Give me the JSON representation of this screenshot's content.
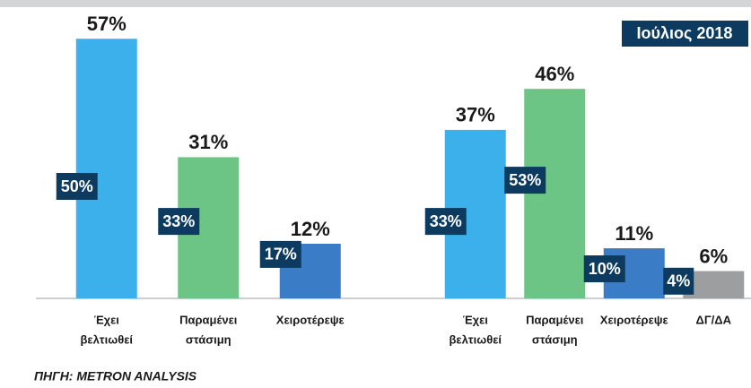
{
  "chart_data": [
    {
      "type": "bar",
      "categories": [
        [
          "Έχει",
          "βελτιωθεί"
        ],
        [
          "Παραμένει",
          "στάσιμη"
        ],
        [
          "Χειροτέρεψε"
        ]
      ],
      "values": [
        57,
        31,
        12
      ],
      "value_labels": [
        "57%",
        "31%",
        "12%"
      ],
      "comparison": {
        "values": [
          50,
          33,
          17
        ],
        "value_labels": [
          "50%",
          "33%",
          "17%"
        ],
        "color": "#0c3b5f"
      },
      "colors": [
        "#3bb0ea",
        "#6cc485",
        "#3a7dc6"
      ],
      "ylim": [
        0,
        60
      ]
    },
    {
      "type": "bar",
      "categories": [
        [
          "Έχει",
          "βελτιωθεί"
        ],
        [
          "Παραμένει",
          "στάσιμη"
        ],
        [
          "Χειροτέρεψε"
        ],
        [
          "ΔΓ/ΔΑ"
        ]
      ],
      "values": [
        37,
        46,
        11,
        6
      ],
      "value_labels": [
        "37%",
        "46%",
        "11%",
        "6%"
      ],
      "comparison": {
        "values": [
          33,
          53,
          10,
          4
        ],
        "value_labels": [
          "33%",
          "53%",
          "10%",
          "4%"
        ],
        "color": "#0c3b5f"
      },
      "colors": [
        "#3bb0ea",
        "#6cc485",
        "#3a7dc6",
        "#9c9ea0"
      ],
      "ylim": [
        0,
        60
      ]
    }
  ],
  "legend": "Ιούλιος 2018",
  "source": "ΠΗΓΗ: METRON ANALYSIS"
}
